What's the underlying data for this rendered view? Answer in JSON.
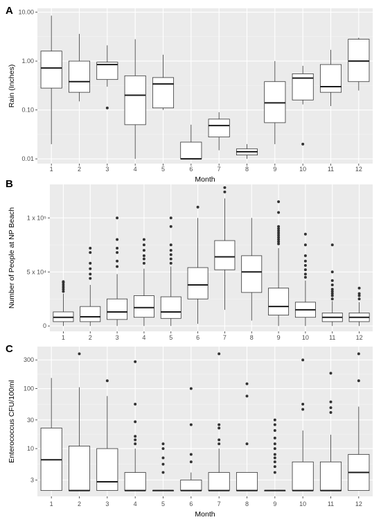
{
  "chart_data": [
    {
      "panel_letter": "A",
      "type": "box",
      "title": "",
      "xlabel": "Month",
      "ylabel": "Rain (Inches)",
      "yscale": "log",
      "ylim": [
        0.008,
        12
      ],
      "yticks": [
        0.01,
        0.1,
        1,
        10
      ],
      "ytick_labels": [
        "0.01",
        "0.10",
        "1.00",
        "10.00"
      ],
      "categories": [
        "1",
        "2",
        "3",
        "4",
        "5",
        "6",
        "7",
        "8",
        "9",
        "10",
        "11",
        "12"
      ],
      "boxes": [
        {
          "min": 0.02,
          "q1": 0.28,
          "median": 0.72,
          "q3": 1.6,
          "max": 8.5,
          "outliers": []
        },
        {
          "min": 0.15,
          "q1": 0.23,
          "median": 0.38,
          "q3": 1.0,
          "max": 3.6,
          "outliers": []
        },
        {
          "min": 0.3,
          "q1": 0.42,
          "median": 0.85,
          "q3": 0.95,
          "max": 2.1,
          "outliers": [
            0.11
          ]
        },
        {
          "min": 0.01,
          "q1": 0.05,
          "median": 0.2,
          "q3": 0.5,
          "max": 2.8,
          "outliers": []
        },
        {
          "min": 0.1,
          "q1": 0.11,
          "median": 0.34,
          "q3": 0.46,
          "max": 1.35,
          "outliers": []
        },
        {
          "min": 0.01,
          "q1": 0.01,
          "median": 0.01,
          "q3": 0.022,
          "max": 0.05,
          "outliers": []
        },
        {
          "min": 0.015,
          "q1": 0.028,
          "median": 0.048,
          "q3": 0.065,
          "max": 0.09,
          "outliers": []
        },
        {
          "min": 0.01,
          "q1": 0.012,
          "median": 0.014,
          "q3": 0.016,
          "max": 0.02,
          "outliers": []
        },
        {
          "min": 0.02,
          "q1": 0.055,
          "median": 0.14,
          "q3": 0.38,
          "max": 1.0,
          "outliers": []
        },
        {
          "min": 0.13,
          "q1": 0.16,
          "median": 0.45,
          "q3": 0.55,
          "max": 0.8,
          "outliers": [
            0.02
          ]
        },
        {
          "min": 0.12,
          "q1": 0.23,
          "median": 0.3,
          "q3": 0.85,
          "max": 1.7,
          "outliers": []
        },
        {
          "min": 0.25,
          "q1": 0.38,
          "median": 1.0,
          "q3": 2.8,
          "max": 3.0,
          "outliers": []
        }
      ]
    },
    {
      "panel_letter": "B",
      "type": "box",
      "title": "",
      "xlabel": "",
      "ylabel": "Number of People at NP Beach",
      "yscale": "linear",
      "ylim": [
        -5000,
        131000
      ],
      "yticks": [
        0,
        50000,
        100000
      ],
      "ytick_labels": [
        "0",
        "5 x 10⁴",
        "1 x 10⁵"
      ],
      "categories": [
        "1",
        "2",
        "3",
        "4",
        "5",
        "6",
        "7",
        "8",
        "9",
        "10",
        "11",
        "12"
      ],
      "boxes": [
        {
          "min": 0,
          "q1": 4000,
          "median": 8000,
          "q3": 13000,
          "max": 30000,
          "outliers": [
            32000,
            34000,
            36000,
            38000,
            40000,
            41000
          ]
        },
        {
          "min": 0,
          "q1": 4000,
          "median": 8500,
          "q3": 18000,
          "max": 38000,
          "outliers": [
            44000,
            48000,
            53000,
            58000,
            68000,
            72000
          ]
        },
        {
          "min": 0,
          "q1": 6000,
          "median": 13000,
          "q3": 25000,
          "max": 48000,
          "outliers": [
            55000,
            60000,
            68000,
            72000,
            80000,
            100000
          ]
        },
        {
          "min": 0,
          "q1": 8000,
          "median": 17000,
          "q3": 28000,
          "max": 53000,
          "outliers": [
            58000,
            62000,
            65000,
            70000,
            75000,
            80000
          ]
        },
        {
          "min": 0,
          "q1": 7000,
          "median": 13000,
          "q3": 27000,
          "max": 55000,
          "outliers": [
            58000,
            62000,
            66000,
            70000,
            75000,
            92000,
            100000
          ]
        },
        {
          "min": 2000,
          "q1": 25000,
          "median": 38000,
          "q3": 54000,
          "max": 100000,
          "outliers": [
            110000
          ]
        },
        {
          "min": 15000,
          "q1": 52000,
          "median": 64000,
          "q3": 79000,
          "max": 118000,
          "outliers": [
            124000,
            128000
          ]
        },
        {
          "min": 5000,
          "q1": 31000,
          "median": 50000,
          "q3": 65000,
          "max": 100000,
          "outliers": []
        },
        {
          "min": 0,
          "q1": 10000,
          "median": 18000,
          "q3": 35000,
          "max": 72000,
          "outliers": [
            76000,
            78000,
            80000,
            82000,
            84000,
            86000,
            88000,
            90000,
            92000,
            105000,
            115000
          ]
        },
        {
          "min": 0,
          "q1": 8000,
          "median": 15000,
          "q3": 22000,
          "max": 42000,
          "outliers": [
            45000,
            48000,
            52000,
            56000,
            60000,
            65000,
            75000,
            85000
          ]
        },
        {
          "min": 0,
          "q1": 4000,
          "median": 8000,
          "q3": 12000,
          "max": 23000,
          "outliers": [
            25000,
            28000,
            30000,
            32000,
            34000,
            38000,
            42000,
            50000,
            75000
          ]
        },
        {
          "min": 0,
          "q1": 4000,
          "median": 8000,
          "q3": 12000,
          "max": 22000,
          "outliers": [
            25000,
            28000,
            30000,
            35000
          ]
        }
      ]
    },
    {
      "panel_letter": "C",
      "type": "box",
      "title": "",
      "xlabel": "Month",
      "ylabel": "Enterococcus CFU/100ml",
      "yscale": "log",
      "ylim": [
        1.6,
        500
      ],
      "yticks": [
        3,
        10,
        30,
        100,
        300
      ],
      "ytick_labels": [
        "3",
        "10",
        "30",
        "100",
        "300"
      ],
      "categories": [
        "1",
        "2",
        "3",
        "4",
        "5",
        "6",
        "7",
        "8",
        "9",
        "10",
        "11",
        "12"
      ],
      "boxes": [
        {
          "min": 2,
          "q1": 2,
          "median": 6.5,
          "q3": 22,
          "max": 150,
          "outliers": []
        },
        {
          "min": 2,
          "q1": 2,
          "median": 2,
          "q3": 11,
          "max": 105,
          "outliers": [
            380
          ]
        },
        {
          "min": 2,
          "q1": 2,
          "median": 2.8,
          "q3": 10,
          "max": 75,
          "outliers": [
            135
          ]
        },
        {
          "min": 2,
          "q1": 2,
          "median": 2,
          "q3": 4,
          "max": 10,
          "outliers": [
            12,
            14,
            16,
            28,
            55,
            280
          ]
        },
        {
          "min": 2,
          "q1": 2,
          "median": 2,
          "q3": 2,
          "max": 2,
          "outliers": [
            4,
            5.5,
            7,
            10,
            12
          ]
        },
        {
          "min": 2,
          "q1": 2,
          "median": 2,
          "q3": 3,
          "max": 4,
          "outliers": [
            6,
            8,
            25,
            100
          ]
        },
        {
          "min": 2,
          "q1": 2,
          "median": 2,
          "q3": 4,
          "max": 10,
          "outliers": [
            12,
            14,
            22,
            25,
            380
          ]
        },
        {
          "min": 2,
          "q1": 2,
          "median": 2,
          "q3": 4,
          "max": 4,
          "outliers": [
            12,
            75,
            120
          ]
        },
        {
          "min": 2,
          "q1": 2,
          "median": 2,
          "q3": 2,
          "max": 2,
          "outliers": [
            4,
            5,
            6,
            7,
            8,
            10,
            12,
            15,
            20,
            25,
            30
          ]
        },
        {
          "min": 2,
          "q1": 2,
          "median": 2,
          "q3": 6,
          "max": 20,
          "outliers": [
            45,
            55,
            300
          ]
        },
        {
          "min": 2,
          "q1": 2,
          "median": 2,
          "q3": 6,
          "max": 17,
          "outliers": [
            40,
            48,
            60,
            180
          ]
        },
        {
          "min": 2,
          "q1": 2,
          "median": 4,
          "q3": 8,
          "max": 50,
          "outliers": [
            135,
            380
          ]
        }
      ]
    }
  ],
  "colors": {
    "panel_background": "#ebebeb",
    "grid_major": "#ffffff",
    "grid_minor": "#f4f4f4",
    "box_fill": "#ffffff",
    "box_stroke": "#333333",
    "outlier": "#333333",
    "tick_text": "#4d4d4d"
  }
}
